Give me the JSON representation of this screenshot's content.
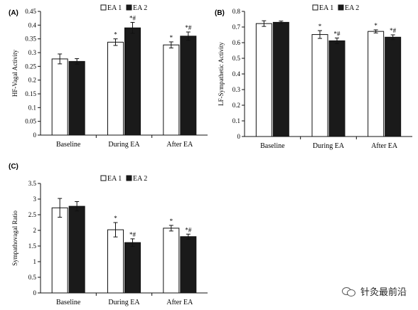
{
  "legend": {
    "series1": "EA 1",
    "series2": "EA 2"
  },
  "colors": {
    "series1_fill": "#ffffff",
    "series2_fill": "#1a1a1a",
    "stroke": "#111111"
  },
  "watermark": {
    "text": "针灸最前沿",
    "icon": "wechat-icon"
  },
  "chart_data": [
    {
      "id": "panel-a",
      "type": "bar",
      "panel_label": "(A)",
      "ylabel": "HF-Vagal Activity",
      "xlabel": "",
      "categories": [
        "Baseline",
        "During EA",
        "After EA"
      ],
      "ylim": [
        0,
        0.45
      ],
      "yticks": [
        0,
        0.05,
        0.1,
        0.15,
        0.2,
        0.25,
        0.3,
        0.35,
        0.4,
        0.45
      ],
      "yticklabels": [
        "0",
        "0.05",
        "0.1",
        "0.15",
        "0.2",
        "0.25",
        "0.3",
        "0.35",
        "0.4",
        "0.45"
      ],
      "series": [
        {
          "name": "EA 1",
          "values": [
            0.277,
            0.338,
            0.328
          ],
          "errors": [
            0.018,
            0.012,
            0.011
          ],
          "annotations": [
            "",
            "*",
            "*"
          ]
        },
        {
          "name": "EA 2",
          "values": [
            0.268,
            0.39,
            0.36
          ],
          "errors": [
            0.01,
            0.02,
            0.015
          ],
          "annotations": [
            "",
            "*#",
            "*#"
          ]
        }
      ]
    },
    {
      "id": "panel-b",
      "type": "bar",
      "panel_label": "(B)",
      "ylabel": "LF-Sympathetic Activity",
      "xlabel": "",
      "categories": [
        "Baseline",
        "During EA",
        "After EA"
      ],
      "ylim": [
        0,
        0.8
      ],
      "yticks": [
        0,
        0.1,
        0.2,
        0.3,
        0.4,
        0.5,
        0.6,
        0.7,
        0.8
      ],
      "yticklabels": [
        "0",
        "0.1",
        "0.2",
        "0.3",
        "0.4",
        "0.5",
        "0.6",
        "0.7",
        "0.8"
      ],
      "series": [
        {
          "name": "EA 1",
          "values": [
            0.722,
            0.652,
            0.672
          ],
          "errors": [
            0.018,
            0.025,
            0.01
          ],
          "annotations": [
            "",
            "*",
            "*"
          ]
        },
        {
          "name": "EA 2",
          "values": [
            0.73,
            0.612,
            0.635
          ],
          "errors": [
            0.008,
            0.018,
            0.015
          ],
          "annotations": [
            "",
            "*#",
            "*#"
          ]
        }
      ]
    },
    {
      "id": "panel-c",
      "type": "bar",
      "panel_label": "(C)",
      "ylabel": "Sympathovagal Ratio",
      "xlabel": "",
      "categories": [
        "Baseline",
        "During EA",
        "After EA"
      ],
      "ylim": [
        0,
        3.5
      ],
      "yticks": [
        0,
        0.5,
        1,
        1.5,
        2,
        2.5,
        3,
        3.5
      ],
      "yticklabels": [
        "0",
        "0.5",
        "1",
        "1.5",
        "2",
        "2.5",
        "3",
        "3.5"
      ],
      "series": [
        {
          "name": "EA 1",
          "values": [
            2.72,
            2.02,
            2.07
          ],
          "errors": [
            0.3,
            0.23,
            0.09
          ],
          "annotations": [
            "",
            "*",
            "*"
          ]
        },
        {
          "name": "EA 2",
          "values": [
            2.77,
            1.61,
            1.8
          ],
          "errors": [
            0.15,
            0.12,
            0.08
          ],
          "annotations": [
            "",
            "*#",
            "*#"
          ]
        }
      ]
    }
  ]
}
